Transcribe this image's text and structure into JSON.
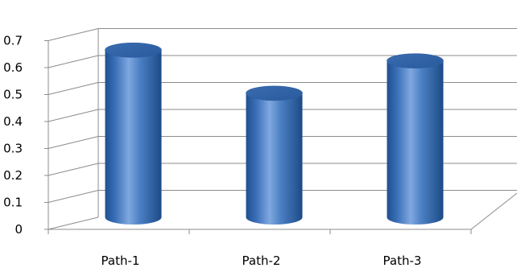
{
  "chart_data": {
    "type": "bar",
    "style": "3d-cylinder",
    "categories": [
      "Path-1",
      "Path-2",
      "Path-3"
    ],
    "series": [
      {
        "values": [
          0.62,
          0.46,
          0.58
        ]
      }
    ],
    "title": "",
    "xlabel": "",
    "ylabel": "",
    "ylim": [
      0,
      0.7
    ],
    "yticks": [
      "0",
      "0.1",
      "0.2",
      "0.3",
      "0.4",
      "0.5",
      "0.6",
      "0.7"
    ],
    "grid": true,
    "legend": "none",
    "colors": {
      "bar": "#4a7fc3",
      "bar_dark": "#1f4f8f",
      "bar_light": "#a9c6ef",
      "grid": "#8c8c8c",
      "axis": "#8c8c8c"
    }
  }
}
